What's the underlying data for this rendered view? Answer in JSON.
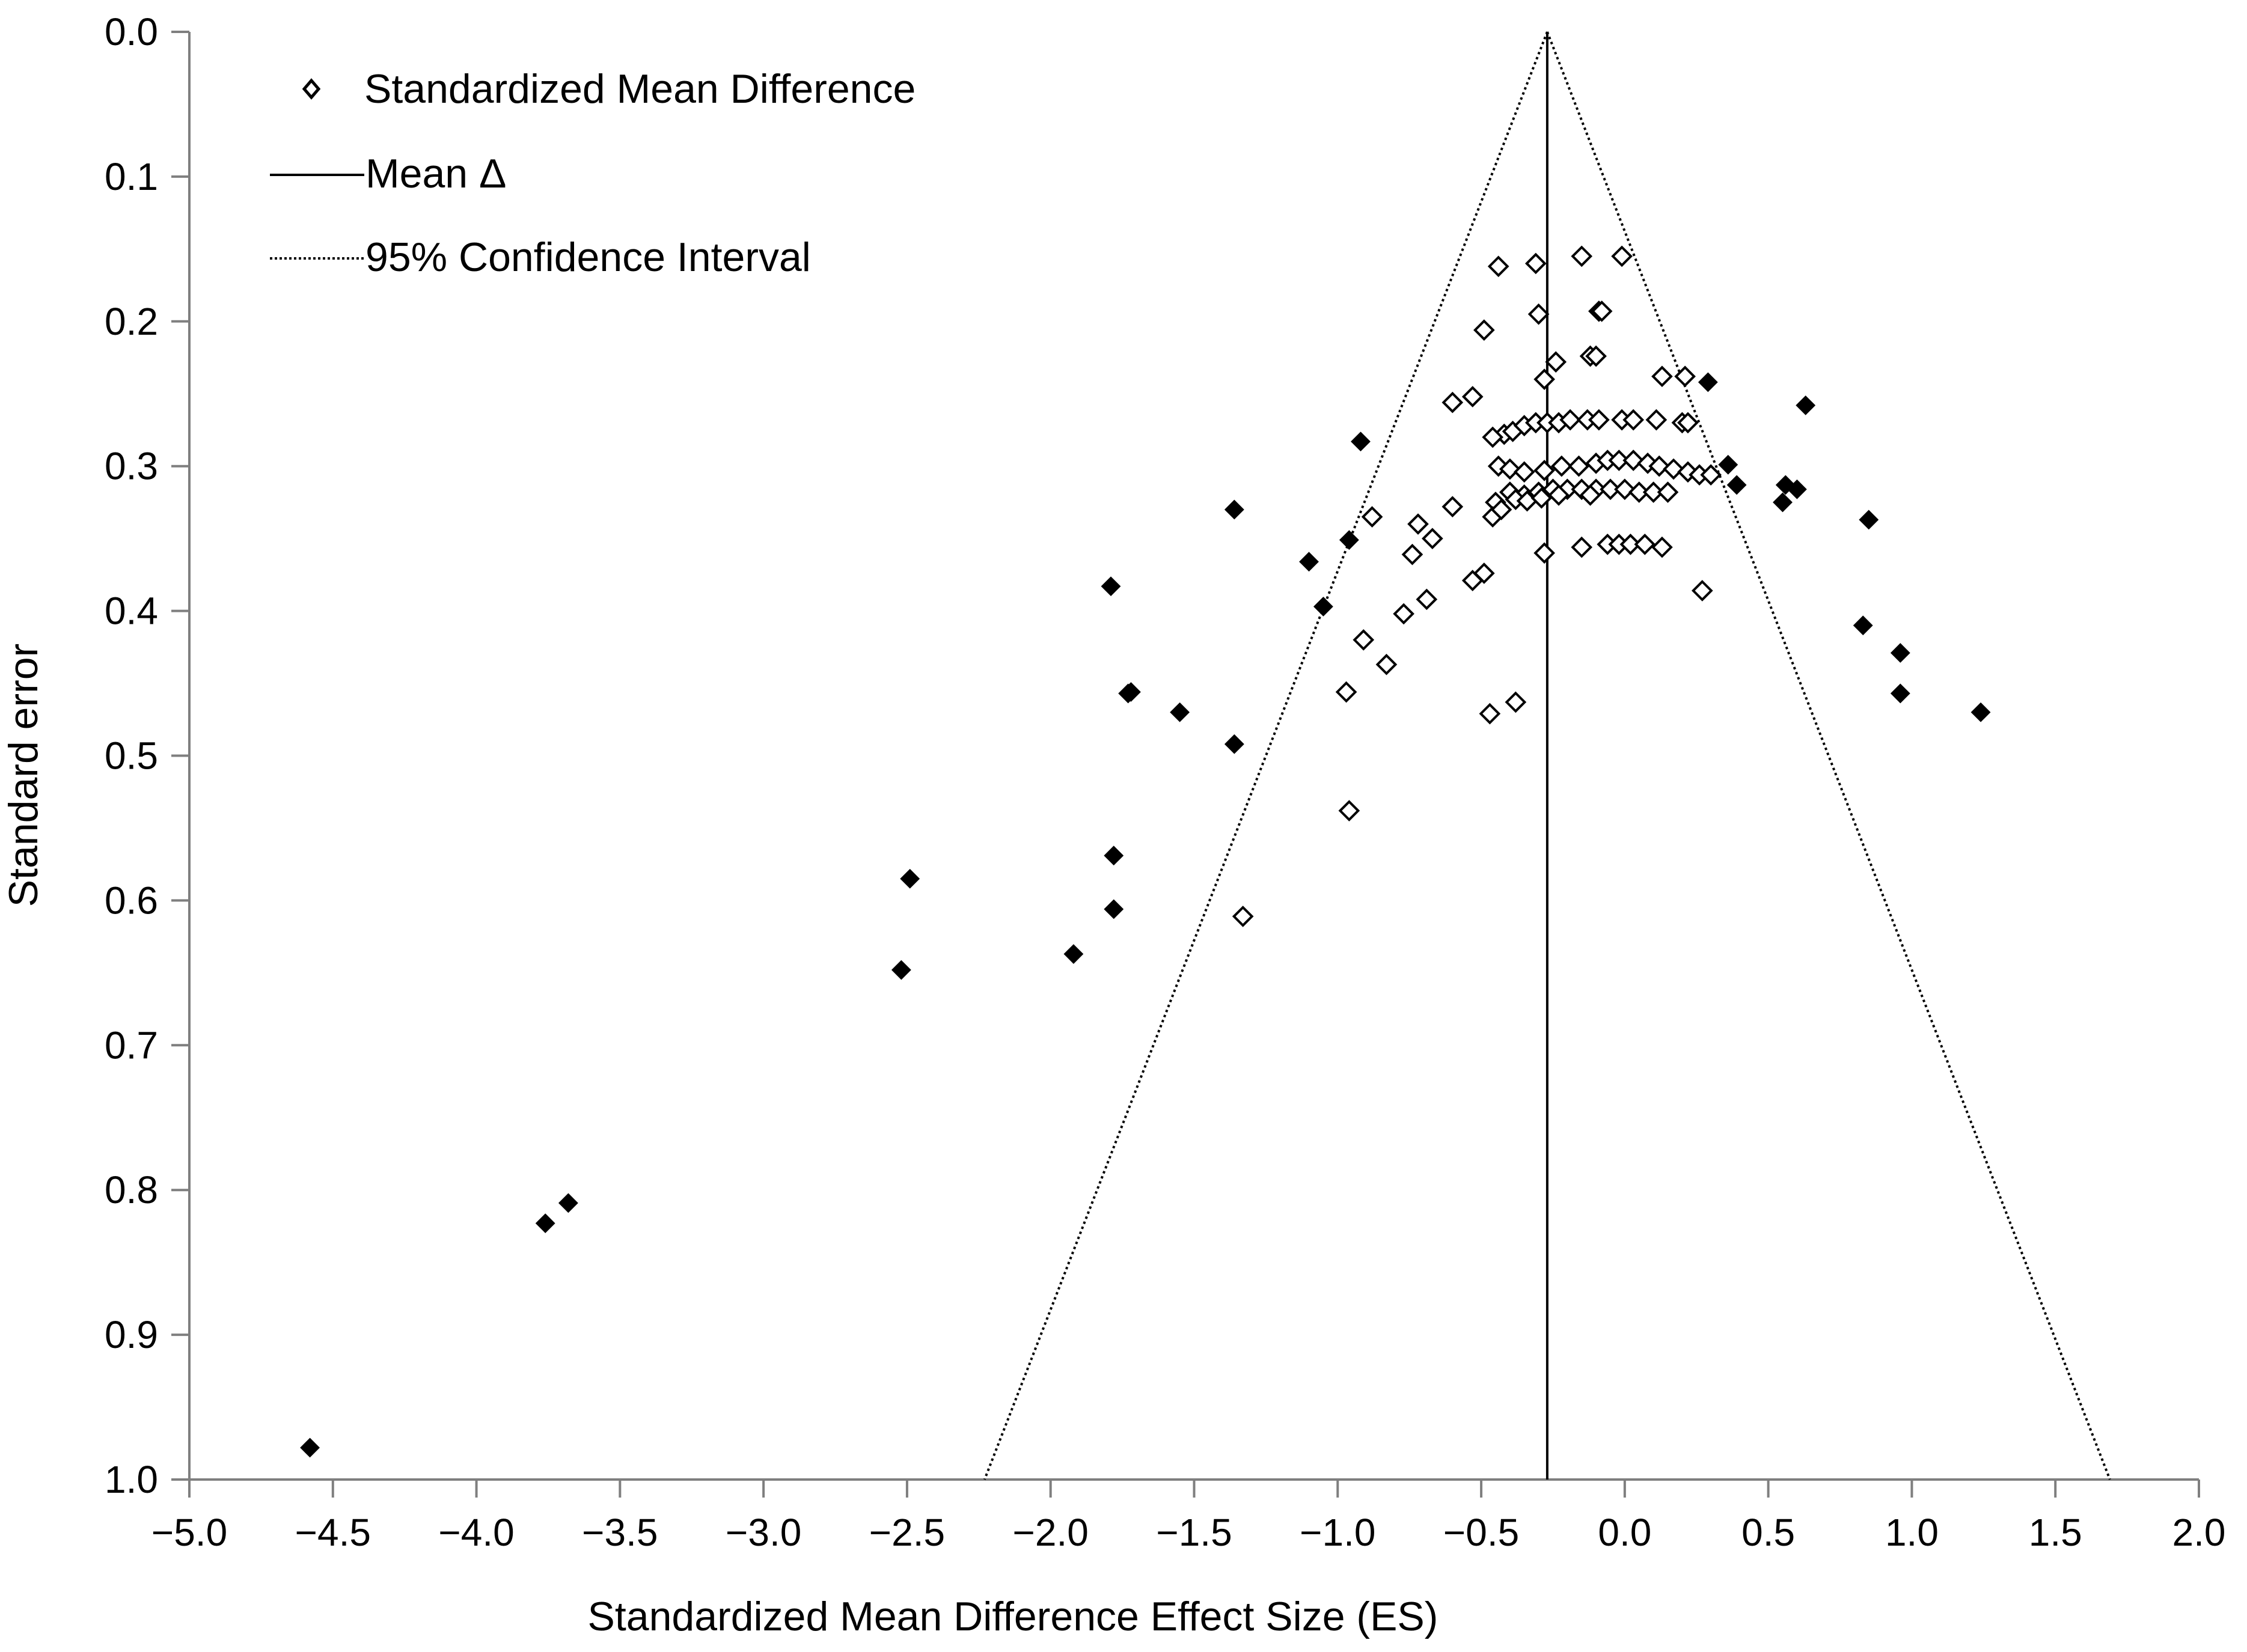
{
  "chart_data": {
    "type": "scatter",
    "title": "",
    "xlabel": "Standardized Mean Difference Effect Size (ES)",
    "ylabel": "Standard error",
    "xlim": [
      -5.0,
      2.0
    ],
    "ylim": [
      1.0,
      0.0
    ],
    "y_inverted": true,
    "grid": false,
    "x_ticks": [
      "−5.0",
      "−4.5",
      "−4.0",
      "−3.5",
      "−3.0",
      "−2.5",
      "−2.0",
      "−1.5",
      "−1.0",
      "−0.5",
      "0.0",
      "0.5",
      "1.0",
      "1.5",
      "2.0"
    ],
    "x_tick_values": [
      -5.0,
      -4.5,
      -4.0,
      -3.5,
      -3.0,
      -2.5,
      -2.0,
      -1.5,
      -1.0,
      -0.5,
      0.0,
      0.5,
      1.0,
      1.5,
      2.0
    ],
    "y_ticks": [
      "0.0",
      "0.1",
      "0.2",
      "0.3",
      "0.4",
      "0.5",
      "0.6",
      "0.7",
      "0.8",
      "0.9",
      "1.0"
    ],
    "y_tick_values": [
      0.0,
      0.1,
      0.2,
      0.3,
      0.4,
      0.5,
      0.6,
      0.7,
      0.8,
      0.9,
      1.0
    ],
    "legend": {
      "placement": "top-left",
      "entries": [
        {
          "label": "Standardized Mean Difference",
          "marker": "open-diamond"
        },
        {
          "label": "Mean Δ",
          "marker": "solid-line"
        },
        {
          "label": "95% Confidence Interval",
          "marker": "dotted-line"
        }
      ]
    },
    "mean_delta": -0.27,
    "confidence_interval": {
      "apex": [
        -0.27,
        0.0
      ],
      "left_at_se_1": [
        -2.23,
        1.0
      ],
      "right_at_se_1": [
        1.69,
        1.0
      ]
    },
    "series": [
      {
        "name": "Standardized Mean Difference (within CI)",
        "marker": "open-diamond",
        "color": "#000000",
        "points": [
          [
            -0.44,
            0.162
          ],
          [
            -0.31,
            0.16
          ],
          [
            -0.15,
            0.155
          ],
          [
            -0.01,
            0.155
          ],
          [
            -0.3,
            0.195
          ],
          [
            -0.49,
            0.206
          ],
          [
            -0.09,
            0.193
          ],
          [
            -0.08,
            0.193
          ],
          [
            -0.12,
            0.224
          ],
          [
            -0.1,
            0.224
          ],
          [
            -0.24,
            0.228
          ],
          [
            -0.28,
            0.24
          ],
          [
            0.13,
            0.238
          ],
          [
            0.21,
            0.238
          ],
          [
            -0.6,
            0.256
          ],
          [
            -0.53,
            0.252
          ],
          [
            -0.42,
            0.278
          ],
          [
            -0.46,
            0.28
          ],
          [
            -0.39,
            0.276
          ],
          [
            -0.35,
            0.272
          ],
          [
            -0.31,
            0.27
          ],
          [
            -0.27,
            0.27
          ],
          [
            -0.23,
            0.27
          ],
          [
            -0.19,
            0.268
          ],
          [
            -0.13,
            0.268
          ],
          [
            -0.09,
            0.268
          ],
          [
            -0.01,
            0.268
          ],
          [
            0.03,
            0.268
          ],
          [
            0.11,
            0.268
          ],
          [
            0.2,
            0.27
          ],
          [
            0.22,
            0.27
          ],
          [
            -0.44,
            0.3
          ],
          [
            -0.4,
            0.302
          ],
          [
            -0.35,
            0.304
          ],
          [
            -0.28,
            0.303
          ],
          [
            -0.22,
            0.3
          ],
          [
            -0.16,
            0.3
          ],
          [
            -0.1,
            0.298
          ],
          [
            -0.06,
            0.296
          ],
          [
            -0.02,
            0.296
          ],
          [
            0.03,
            0.296
          ],
          [
            0.08,
            0.298
          ],
          [
            0.12,
            0.3
          ],
          [
            0.17,
            0.302
          ],
          [
            0.22,
            0.304
          ],
          [
            0.26,
            0.306
          ],
          [
            0.3,
            0.306
          ],
          [
            -0.4,
            0.318
          ],
          [
            -0.35,
            0.32
          ],
          [
            -0.3,
            0.318
          ],
          [
            -0.25,
            0.316
          ],
          [
            -0.2,
            0.316
          ],
          [
            -0.15,
            0.316
          ],
          [
            -0.1,
            0.316
          ],
          [
            -0.05,
            0.316
          ],
          [
            0.0,
            0.316
          ],
          [
            0.05,
            0.318
          ],
          [
            0.1,
            0.318
          ],
          [
            0.15,
            0.318
          ],
          [
            -0.45,
            0.325
          ],
          [
            -0.38,
            0.323
          ],
          [
            -0.34,
            0.324
          ],
          [
            -0.29,
            0.322
          ],
          [
            -0.23,
            0.32
          ],
          [
            -0.12,
            0.32
          ],
          [
            -0.6,
            0.328
          ],
          [
            -0.67,
            0.35
          ],
          [
            -0.74,
            0.361
          ],
          [
            -0.72,
            0.34
          ],
          [
            -0.88,
            0.335
          ],
          [
            -0.46,
            0.335
          ],
          [
            -0.43,
            0.33
          ],
          [
            -0.28,
            0.36
          ],
          [
            -0.15,
            0.356
          ],
          [
            -0.06,
            0.354
          ],
          [
            -0.02,
            0.354
          ],
          [
            0.02,
            0.354
          ],
          [
            0.07,
            0.354
          ],
          [
            0.13,
            0.356
          ],
          [
            0.27,
            0.386
          ],
          [
            -0.53,
            0.379
          ],
          [
            -0.49,
            0.374
          ],
          [
            -0.69,
            0.392
          ],
          [
            -0.77,
            0.402
          ],
          [
            -0.83,
            0.437
          ],
          [
            -0.91,
            0.42
          ],
          [
            -0.97,
            0.456
          ],
          [
            -0.47,
            0.471
          ],
          [
            -0.38,
            0.463
          ],
          [
            -0.96,
            0.538
          ],
          [
            -1.33,
            0.611
          ]
        ]
      },
      {
        "name": "Standardized Mean Difference (outside CI)",
        "marker": "filled-diamond",
        "color": "#000000",
        "points": [
          [
            0.29,
            0.242
          ],
          [
            0.63,
            0.258
          ],
          [
            -0.92,
            0.283
          ],
          [
            0.36,
            0.299
          ],
          [
            0.39,
            0.313
          ],
          [
            0.56,
            0.313
          ],
          [
            0.6,
            0.316
          ],
          [
            0.55,
            0.325
          ],
          [
            -1.36,
            0.33
          ],
          [
            0.85,
            0.337
          ],
          [
            -0.96,
            0.351
          ],
          [
            -1.1,
            0.366
          ],
          [
            -1.79,
            0.383
          ],
          [
            -1.05,
            0.397
          ],
          [
            0.83,
            0.41
          ],
          [
            0.96,
            0.429
          ],
          [
            -1.72,
            0.456
          ],
          [
            -1.73,
            0.457
          ],
          [
            0.96,
            0.457
          ],
          [
            -1.55,
            0.47
          ],
          [
            1.24,
            0.47
          ],
          [
            -1.36,
            0.492
          ],
          [
            -1.78,
            0.569
          ],
          [
            -2.49,
            0.585
          ],
          [
            -1.78,
            0.606
          ],
          [
            -1.92,
            0.637
          ],
          [
            -2.52,
            0.648
          ],
          [
            -3.68,
            0.809
          ],
          [
            -3.76,
            0.823
          ],
          [
            -4.58,
            0.978
          ]
        ]
      }
    ]
  }
}
